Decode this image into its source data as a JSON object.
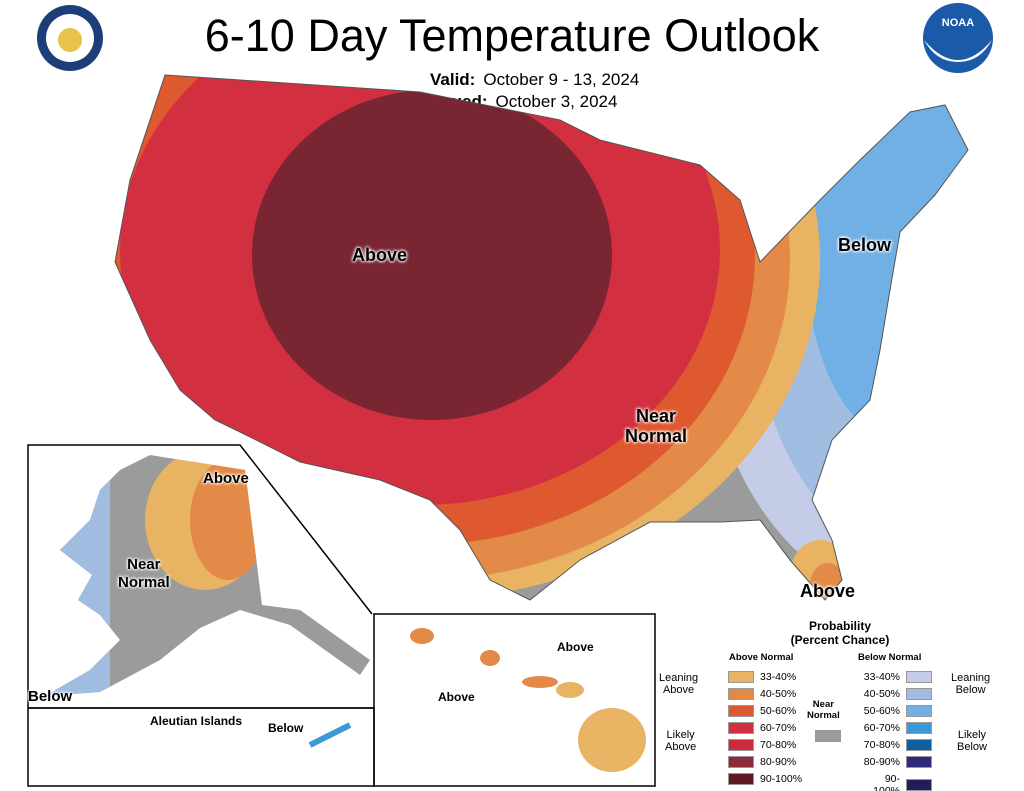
{
  "title": "6-10 Day Temperature Outlook",
  "valid_label": "Valid:",
  "valid_dates": "October 9 - 13, 2024",
  "issued_label": "Issued:",
  "issued_date": "October 3, 2024",
  "logos": {
    "left": "Department of Commerce seal",
    "right": "NOAA"
  },
  "map_labels": {
    "conus_above": "Above",
    "conus_below": "Below",
    "conus_near": "Near\nNormal",
    "florida_above": "Above",
    "ak_above": "Above",
    "ak_near": "Near\nNormal",
    "ak_below": "Below",
    "aleutian_title": "Aleutian Islands",
    "aleutian_below": "Below",
    "hi_above1": "Above",
    "hi_above2": "Above"
  },
  "legend": {
    "title1": "Probability",
    "title2": "(Percent Chance)",
    "above_header": "Above Normal",
    "below_header": "Below Normal",
    "leaning_above": "Leaning\nAbove",
    "likely_above": "Likely\nAbove",
    "leaning_below": "Leaning\nBelow",
    "likely_below": "Likely\nBelow",
    "near_normal": "Near\nNormal",
    "near_color": "#9b9b9b",
    "above": [
      {
        "range": "33-40%",
        "color": "#e8b464"
      },
      {
        "range": "40-50%",
        "color": "#e48a48"
      },
      {
        "range": "50-60%",
        "color": "#de5830"
      },
      {
        "range": "60-70%",
        "color": "#d23040"
      },
      {
        "range": "70-80%",
        "color": "#cf2a3a"
      },
      {
        "range": "80-90%",
        "color": "#8e2a3a"
      },
      {
        "range": "90-100%",
        "color": "#5e1c22"
      }
    ],
    "below": [
      {
        "range": "33-40%",
        "color": "#c4cce8"
      },
      {
        "range": "40-50%",
        "color": "#a0bce0"
      },
      {
        "range": "50-60%",
        "color": "#70b0e4"
      },
      {
        "range": "60-70%",
        "color": "#3a9ad8"
      },
      {
        "range": "70-80%",
        "color": "#1060a0"
      },
      {
        "range": "80-90%",
        "color": "#302878"
      },
      {
        "range": "90-100%",
        "color": "#221c58"
      }
    ]
  }
}
